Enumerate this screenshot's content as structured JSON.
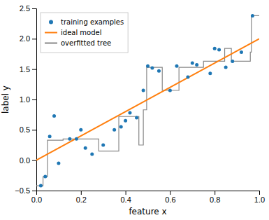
{
  "chart_data": {
    "type": "scatter",
    "xlabel": "feature x",
    "ylabel": "label y",
    "xlim": [
      0.0,
      1.0
    ],
    "ylim": [
      -0.5,
      2.5
    ],
    "xticks": [
      {
        "value": 0.0,
        "label": "0.0"
      },
      0.2,
      0.4,
      0.6,
      0.8,
      {
        "value": 1.0,
        "label": "1.0"
      }
    ],
    "yticks": [
      {
        "value": -0.5,
        "label": "−0.5"
      },
      {
        "value": 0.0,
        "label": "0.0"
      },
      0.5,
      {
        "value": 1.0,
        "label": "1.0"
      },
      1.5,
      {
        "value": 2.0,
        "label": "2.0"
      },
      2.5
    ],
    "grid": false,
    "legend": "upper-left",
    "series": [
      {
        "name": "training examples",
        "type": "scatter",
        "color": "#1f77b4",
        "marker": "point",
        "x": [
          0.02,
          0.04,
          0.06,
          0.08,
          0.1,
          0.15,
          0.18,
          0.2,
          0.22,
          0.25,
          0.3,
          0.35,
          0.38,
          0.4,
          0.42,
          0.45,
          0.48,
          0.5,
          0.52,
          0.55,
          0.6,
          0.63,
          0.68,
          0.7,
          0.72,
          0.78,
          0.8,
          0.82,
          0.85,
          0.88,
          0.92,
          0.97
        ],
        "values": [
          -0.42,
          -0.27,
          0.39,
          0.73,
          -0.05,
          0.35,
          0.35,
          0.5,
          0.2,
          0.1,
          0.25,
          0.5,
          0.55,
          0.65,
          0.78,
          0.7,
          1.15,
          1.55,
          1.52,
          1.47,
          1.15,
          1.55,
          1.37,
          1.6,
          1.57,
          1.43,
          1.84,
          1.82,
          1.53,
          1.63,
          1.78,
          2.38
        ]
      },
      {
        "name": "ideal model",
        "type": "line",
        "color": "#ff7f0e",
        "line_style": "solid",
        "x": [
          0.0,
          1.0
        ],
        "values": [
          0.0,
          2.0
        ]
      },
      {
        "name": "overfitted tree",
        "type": "line",
        "color": "#888888",
        "line_style": "solid",
        "x": [
          0.0,
          0.03,
          0.03,
          0.05,
          0.05,
          0.12,
          0.12,
          0.28,
          0.28,
          0.37,
          0.37,
          0.46,
          0.46,
          0.48,
          0.48,
          0.495,
          0.495,
          0.565,
          0.565,
          0.64,
          0.64,
          0.75,
          0.75,
          0.845,
          0.845,
          0.875,
          0.875,
          0.96,
          0.96,
          0.965,
          0.965,
          1.0
        ],
        "values": [
          -0.42,
          -0.42,
          -0.27,
          -0.27,
          0.33,
          0.33,
          0.35,
          0.35,
          0.15,
          0.15,
          0.72,
          0.72,
          0.25,
          0.25,
          0.83,
          0.83,
          1.53,
          1.53,
          1.15,
          1.15,
          1.53,
          1.53,
          1.63,
          1.63,
          1.84,
          1.84,
          1.63,
          1.63,
          1.78,
          1.78,
          2.38,
          2.38
        ]
      }
    ]
  }
}
